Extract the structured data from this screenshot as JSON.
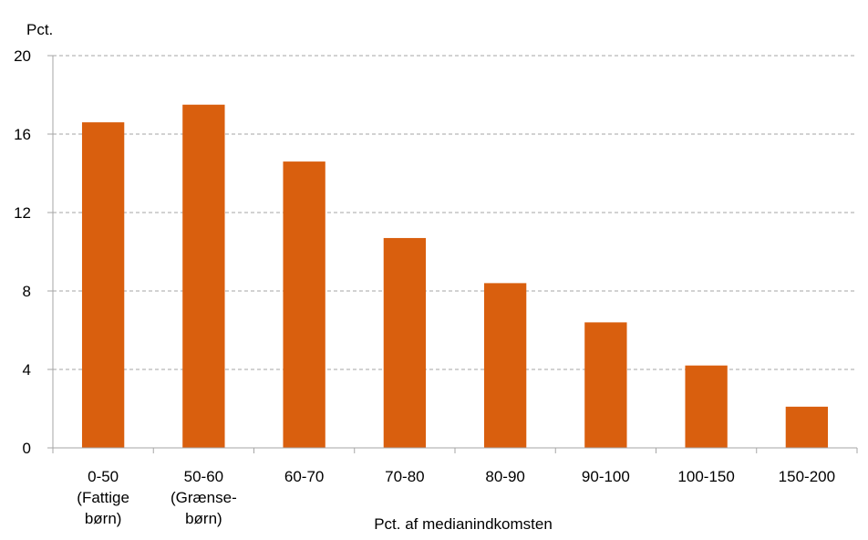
{
  "chart_data": {
    "type": "bar",
    "ylabel": "Pct.",
    "xlabel": "Pct. af medianindkomsten",
    "categories": [
      [
        "0-50",
        "(Fattige",
        "børn)"
      ],
      [
        "50-60",
        "(Grænse-",
        "børn)"
      ],
      [
        "60-70"
      ],
      [
        "70-80"
      ],
      [
        "80-90"
      ],
      [
        "90-100"
      ],
      [
        "100-150"
      ],
      [
        "150-200"
      ]
    ],
    "values": [
      16.6,
      17.5,
      14.6,
      10.7,
      8.4,
      6.4,
      4.2,
      2.1
    ],
    "ylim": [
      0,
      20
    ],
    "yticks": [
      0,
      4,
      8,
      12,
      16,
      20
    ],
    "grid": true,
    "bar_color": "#D95F0E",
    "grid_color": "#A6A6A6",
    "axis_color": "#A6A6A6"
  }
}
